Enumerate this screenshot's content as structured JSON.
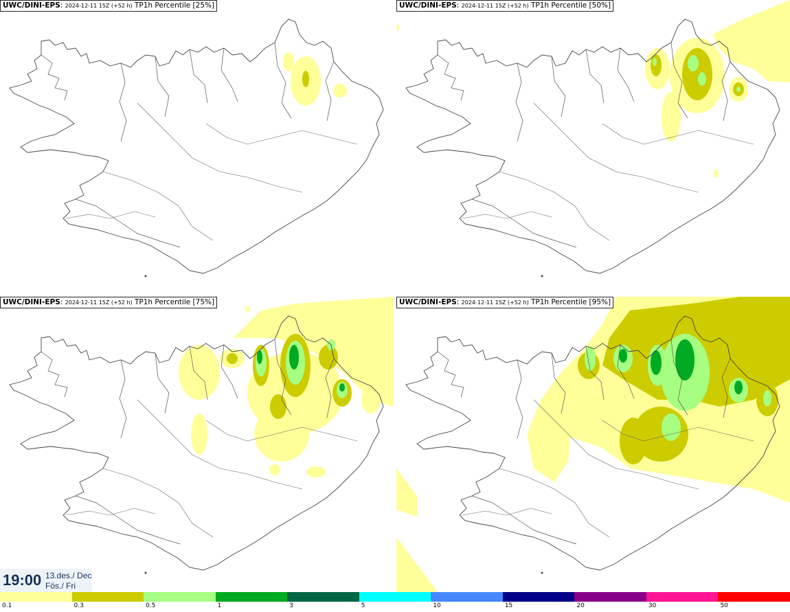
{
  "panels": [
    {
      "model": "UWC/DINI-EPS",
      "date": "2024-12-11 15Z (+52 h)",
      "desc": "TP1h Percentile [25%]"
    },
    {
      "model": "UWC/DINI-EPS",
      "date": "2024-12-11 15Z (+52 h)",
      "desc": "TP1h Percentile [50%]"
    },
    {
      "model": "UWC/DINI-EPS",
      "date": "2024-12-11 15Z (+52 h)",
      "desc": "TP1h Percentile [75%]"
    },
    {
      "model": "UWC/DINI-EPS",
      "date": "2024-12-11 15Z (+52 h)",
      "desc": "TP1h Percentile [95%]"
    }
  ],
  "time": {
    "clock": "19:00",
    "date_line1": "13.des./ Dec",
    "date_line2": "Fös./ Fri"
  },
  "colorbar": {
    "colors": [
      "#ffff99",
      "#cccc00",
      "#a6ff80",
      "#00aa22",
      "#006644",
      "#00ffff",
      "#4488ff",
      "#000088",
      "#880088",
      "#ff1493",
      "#ff0000"
    ],
    "labels": [
      "0.1",
      "0.3",
      "0.5",
      "1",
      "3",
      "5",
      "10",
      "15",
      "20",
      "30",
      "50"
    ]
  }
}
